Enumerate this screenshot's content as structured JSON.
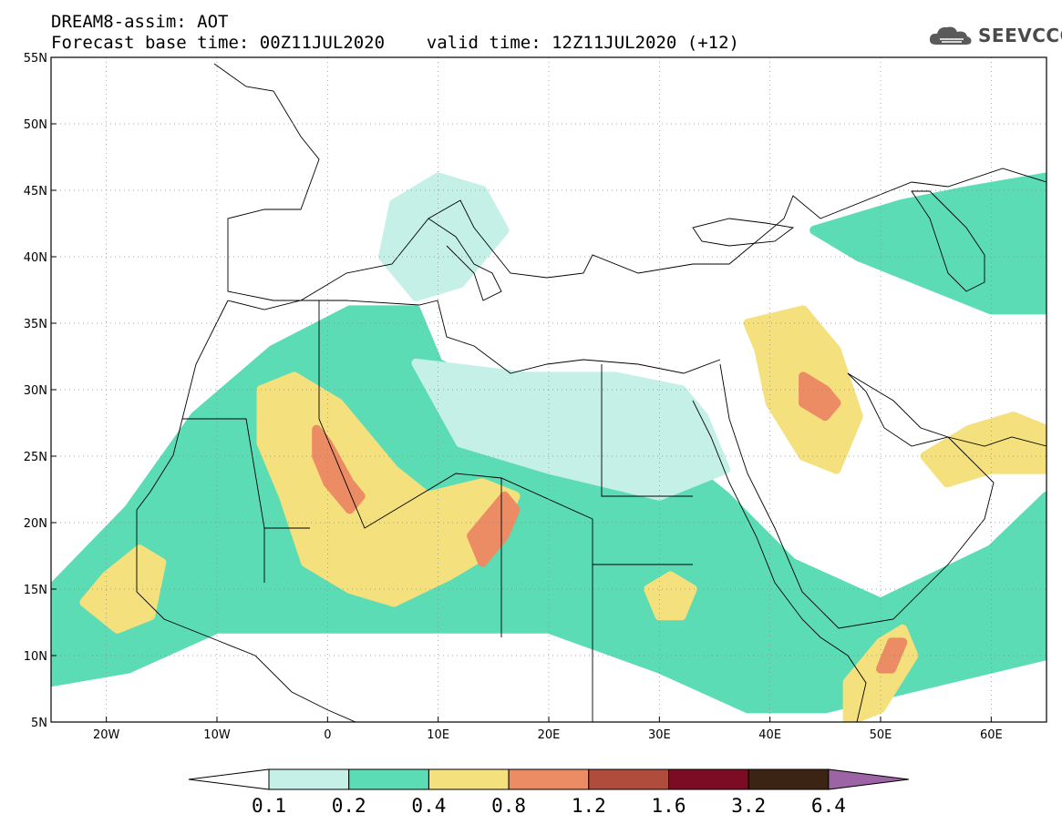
{
  "title": {
    "line1": "DREAM8-assim: AOT",
    "line2": "Forecast base time: 00Z11JUL2020    valid time: 12Z11JUL2020 (+12)"
  },
  "logo": {
    "text": "SEEVCCC",
    "icon": "cloud-icon"
  },
  "map": {
    "lon_range": [
      -25,
      65
    ],
    "lat_range": [
      5,
      55
    ],
    "grid": "dotted",
    "lat_ticks": [
      {
        "value": 55,
        "label": "55N"
      },
      {
        "value": 50,
        "label": "50N"
      },
      {
        "value": 45,
        "label": "45N"
      },
      {
        "value": 40,
        "label": "40N"
      },
      {
        "value": 35,
        "label": "35N"
      },
      {
        "value": 30,
        "label": "30N"
      },
      {
        "value": 25,
        "label": "25N"
      },
      {
        "value": 20,
        "label": "20N"
      },
      {
        "value": 15,
        "label": "15N"
      },
      {
        "value": 10,
        "label": "10N"
      },
      {
        "value": 5,
        "label": "5N"
      }
    ],
    "lon_ticks": [
      {
        "value": -20,
        "label": "20W"
      },
      {
        "value": -10,
        "label": "10W"
      },
      {
        "value": 0,
        "label": "0"
      },
      {
        "value": 10,
        "label": "10E"
      },
      {
        "value": 20,
        "label": "20E"
      },
      {
        "value": 30,
        "label": "30E"
      },
      {
        "value": 40,
        "label": "40E"
      },
      {
        "value": 50,
        "label": "50E"
      },
      {
        "value": 60,
        "label": "60E"
      }
    ]
  },
  "colorbar": {
    "labels": [
      "0.1",
      "0.2",
      "0.4",
      "0.8",
      "1.2",
      "1.6",
      "3.2",
      "6.4"
    ],
    "colors": [
      "#c4f0e8",
      "#5cdcb4",
      "#f4e07c",
      "#ec8c64",
      "#b04c3c",
      "#7c0c24",
      "#3c2414",
      "#9c64a4"
    ],
    "below_color": "#ffffff"
  },
  "aot_regions": [
    {
      "name": "sahara-north-band",
      "level": "0.2",
      "color": "#5cdcb4",
      "points": [
        [
          -25,
          15
        ],
        [
          -18,
          21
        ],
        [
          -12,
          28
        ],
        [
          -5,
          33
        ],
        [
          2,
          36
        ],
        [
          8,
          36
        ],
        [
          10,
          32
        ],
        [
          20,
          28
        ],
        [
          30,
          26
        ],
        [
          36,
          22
        ],
        [
          42,
          17
        ],
        [
          50,
          14
        ],
        [
          60,
          18
        ],
        [
          65,
          22
        ],
        [
          65,
          10
        ],
        [
          55,
          8
        ],
        [
          45,
          6
        ],
        [
          38,
          6
        ],
        [
          30,
          9
        ],
        [
          20,
          12
        ],
        [
          10,
          12
        ],
        [
          0,
          12
        ],
        [
          -10,
          12
        ],
        [
          -18,
          9
        ],
        [
          -25,
          8
        ]
      ]
    },
    {
      "name": "western-sahara-dust",
      "level": "0.4",
      "color": "#f4e07c",
      "points": [
        [
          -6,
          30
        ],
        [
          -3,
          31
        ],
        [
          1,
          29
        ],
        [
          4,
          26
        ],
        [
          6,
          24
        ],
        [
          9,
          22
        ],
        [
          14,
          23
        ],
        [
          17,
          22
        ],
        [
          15,
          18
        ],
        [
          11,
          16
        ],
        [
          6,
          14
        ],
        [
          2,
          15
        ],
        [
          -2,
          17
        ],
        [
          -4,
          22
        ],
        [
          -6,
          26
        ]
      ]
    },
    {
      "name": "algeria-core",
      "level": "0.8",
      "color": "#ec8c64",
      "points": [
        [
          -1,
          27
        ],
        [
          0,
          26
        ],
        [
          2,
          23
        ],
        [
          3,
          22
        ],
        [
          2,
          21
        ],
        [
          0,
          23
        ],
        [
          -1,
          25
        ]
      ]
    },
    {
      "name": "chad-plume",
      "level": "0.8",
      "color": "#ec8c64",
      "points": [
        [
          13,
          19
        ],
        [
          14,
          20
        ],
        [
          16,
          22
        ],
        [
          17,
          21
        ],
        [
          16,
          19
        ],
        [
          14,
          17
        ]
      ]
    },
    {
      "name": "mauritania-coast",
      "level": "0.4",
      "color": "#f4e07c",
      "points": [
        [
          -22,
          14
        ],
        [
          -20,
          16
        ],
        [
          -17,
          18
        ],
        [
          -15,
          17
        ],
        [
          -16,
          13
        ],
        [
          -19,
          12
        ]
      ]
    },
    {
      "name": "sudan-spot",
      "level": "0.4",
      "color": "#f4e07c",
      "points": [
        [
          29,
          15
        ],
        [
          31,
          16
        ],
        [
          33,
          15
        ],
        [
          32,
          13
        ],
        [
          30,
          13
        ]
      ]
    },
    {
      "name": "iraq-dust",
      "level": "0.4",
      "color": "#f4e07c",
      "points": [
        [
          38,
          35
        ],
        [
          43,
          36
        ],
        [
          46,
          33
        ],
        [
          48,
          28
        ],
        [
          46,
          24
        ],
        [
          43,
          25
        ],
        [
          40,
          29
        ],
        [
          39,
          33
        ]
      ]
    },
    {
      "name": "iraq-core",
      "level": "0.8",
      "color": "#ec8c64",
      "points": [
        [
          43,
          31
        ],
        [
          45,
          30
        ],
        [
          46,
          29
        ],
        [
          45,
          28
        ],
        [
          43,
          29
        ]
      ]
    },
    {
      "name": "gulf-to-pakistan",
      "level": "0.4",
      "color": "#f4e07c",
      "points": [
        [
          54,
          25
        ],
        [
          58,
          27
        ],
        [
          62,
          28
        ],
        [
          65,
          27
        ],
        [
          65,
          24
        ],
        [
          60,
          24
        ],
        [
          56,
          23
        ]
      ]
    },
    {
      "name": "somalia-plume",
      "level": "0.4",
      "color": "#f4e07c",
      "points": [
        [
          47,
          8
        ],
        [
          50,
          11
        ],
        [
          52,
          12
        ],
        [
          53,
          10
        ],
        [
          50,
          6
        ],
        [
          47,
          5
        ]
      ]
    },
    {
      "name": "somalia-core",
      "level": "0.8",
      "color": "#ec8c64",
      "points": [
        [
          50,
          9
        ],
        [
          51,
          11
        ],
        [
          52,
          11
        ],
        [
          51,
          9
        ]
      ]
    },
    {
      "name": "central-asia",
      "level": "0.2",
      "color": "#5cdcb4",
      "points": [
        [
          44,
          42
        ],
        [
          52,
          44
        ],
        [
          58,
          45
        ],
        [
          65,
          46
        ],
        [
          65,
          36
        ],
        [
          60,
          36
        ],
        [
          54,
          38
        ],
        [
          48,
          40
        ]
      ]
    },
    {
      "name": "mediterranean-light",
      "level": "0.1",
      "color": "#c4f0e8",
      "points": [
        [
          6,
          44
        ],
        [
          10,
          46
        ],
        [
          14,
          45
        ],
        [
          16,
          42
        ],
        [
          12,
          38
        ],
        [
          8,
          37
        ],
        [
          5,
          40
        ]
      ]
    },
    {
      "name": "egypt-light",
      "level": "0.1",
      "color": "#c4f0e8",
      "points": [
        [
          8,
          32
        ],
        [
          18,
          31
        ],
        [
          26,
          31
        ],
        [
          32,
          30
        ],
        [
          34,
          28
        ],
        [
          36,
          24
        ],
        [
          30,
          22
        ],
        [
          20,
          24
        ],
        [
          12,
          26
        ]
      ]
    }
  ]
}
